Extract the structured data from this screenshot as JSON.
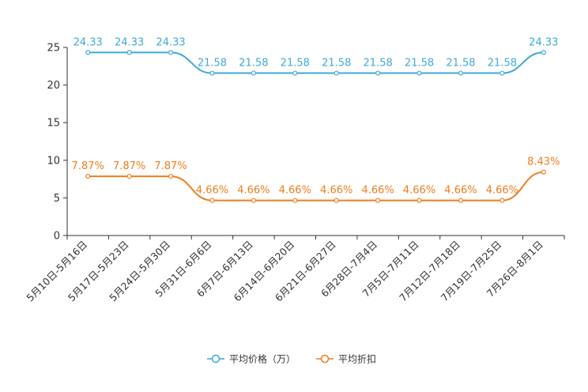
{
  "chart_data": {
    "type": "line",
    "categories": [
      "5月10日-5月16日",
      "5月17日-5月23日",
      "5月24日-5月30日",
      "5月31日-6月6日",
      "6月7日-6月13日",
      "6月14日-6月20日",
      "6月21日-6月27日",
      "6月28日-7月4日",
      "7月5日-7月11日",
      "7月12日-7月18日",
      "7月19日-7月25日",
      "7月26日-8月1日"
    ],
    "ylim": [
      0,
      25
    ],
    "yticks": [
      "0",
      "5",
      "10",
      "15",
      "20",
      "25"
    ],
    "series": [
      {
        "name": "平均价格（万）",
        "color": "#3fa9d9",
        "values": [
          24.33,
          24.33,
          24.33,
          21.58,
          21.58,
          21.58,
          21.58,
          21.58,
          21.58,
          21.58,
          21.58,
          24.33
        ],
        "value_labels": [
          "24.33",
          "24.33",
          "24.33",
          "21.58",
          "21.58",
          "21.58",
          "21.58",
          "21.58",
          "21.58",
          "21.58",
          "21.58",
          "24.33"
        ]
      },
      {
        "name": "平均折扣",
        "color": "#f07d1b",
        "values": [
          7.87,
          7.87,
          7.87,
          4.66,
          4.66,
          4.66,
          4.66,
          4.66,
          4.66,
          4.66,
          4.66,
          8.43
        ],
        "value_labels": [
          "7.87%",
          "7.87%",
          "7.87%",
          "4.66%",
          "4.66%",
          "4.66%",
          "4.66%",
          "4.66%",
          "4.66%",
          "4.66%",
          "4.66%",
          "8.43%"
        ]
      }
    ],
    "legend_position": "bottom-center"
  }
}
